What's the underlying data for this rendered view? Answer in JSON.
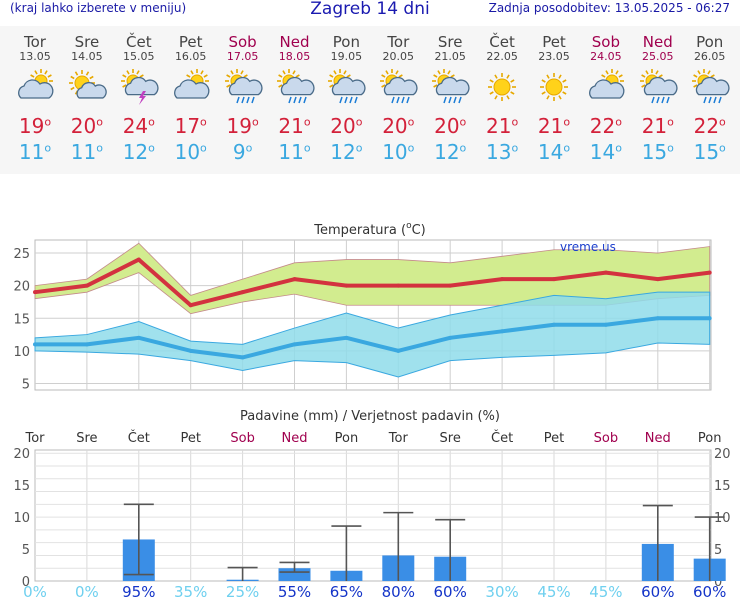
{
  "header": {
    "left_note": "(kraj lahko izberete v meniju)",
    "title": "Zagreb 14 dni",
    "updated": "Zadnja posodobitev: 13.05.2025 - 06:27"
  },
  "days": [
    {
      "name": "Tor",
      "date": "13.05",
      "weekend": false,
      "icon": "partly-cloudy-icon",
      "max": "19",
      "min": "11"
    },
    {
      "name": "Sre",
      "date": "14.05",
      "weekend": false,
      "icon": "sun-cloud-icon",
      "max": "20",
      "min": "11"
    },
    {
      "name": "Čet",
      "date": "15.05",
      "weekend": false,
      "icon": "thunderstorm-icon",
      "max": "24",
      "min": "12"
    },
    {
      "name": "Pet",
      "date": "16.05",
      "weekend": false,
      "icon": "partly-cloudy-icon",
      "max": "17",
      "min": "10"
    },
    {
      "name": "Sob",
      "date": "17.05",
      "weekend": true,
      "icon": "sun-rain-icon",
      "max": "19",
      "min": "9"
    },
    {
      "name": "Ned",
      "date": "18.05",
      "weekend": true,
      "icon": "sun-rain-icon",
      "max": "21",
      "min": "11"
    },
    {
      "name": "Pon",
      "date": "19.05",
      "weekend": false,
      "icon": "sun-rain-icon",
      "max": "20",
      "min": "12"
    },
    {
      "name": "Tor",
      "date": "20.05",
      "weekend": false,
      "icon": "sun-rain-icon",
      "max": "20",
      "min": "10"
    },
    {
      "name": "Sre",
      "date": "21.05",
      "weekend": false,
      "icon": "sun-rain-icon",
      "max": "20",
      "min": "12"
    },
    {
      "name": "Čet",
      "date": "22.05",
      "weekend": false,
      "icon": "sun-icon",
      "max": "21",
      "min": "13"
    },
    {
      "name": "Pet",
      "date": "23.05",
      "weekend": false,
      "icon": "sun-icon",
      "max": "21",
      "min": "14"
    },
    {
      "name": "Sob",
      "date": "24.05",
      "weekend": true,
      "icon": "partly-cloudy-icon",
      "max": "22",
      "min": "14"
    },
    {
      "name": "Ned",
      "date": "25.05",
      "weekend": true,
      "icon": "sun-rain-icon",
      "max": "21",
      "min": "15"
    },
    {
      "name": "Pon",
      "date": "26.05",
      "weekend": false,
      "icon": "sun-rain-icon",
      "max": "22",
      "min": "15"
    }
  ],
  "chart_data": [
    {
      "type": "line",
      "title": "Temperatura (°C)",
      "title_text": "Temperatura (",
      "title_unit": "C)",
      "watermark": "vreme.us",
      "ylim": [
        4,
        27
      ],
      "yticks": [
        5,
        10,
        15,
        20,
        25
      ],
      "grid": true,
      "categories": [
        "13.05",
        "14.05",
        "15.05",
        "16.05",
        "17.05",
        "18.05",
        "19.05",
        "20.05",
        "21.05",
        "22.05",
        "23.05",
        "24.05",
        "25.05",
        "26.05"
      ],
      "series": [
        {
          "name": "max",
          "color": "#d3323f",
          "values": [
            19,
            20,
            24,
            17,
            19,
            21,
            20,
            20,
            20,
            21,
            21,
            22,
            21,
            22
          ]
        },
        {
          "name": "min",
          "color": "#3aa8e0",
          "values": [
            11,
            11,
            12,
            10,
            9,
            11,
            12,
            10,
            12,
            13,
            14,
            14,
            15,
            15
          ]
        }
      ],
      "bands": [
        {
          "name": "max range",
          "color": "#d2ec8f",
          "low": [
            18,
            19,
            22,
            15.7,
            17.5,
            18.7,
            17,
            17,
            17,
            17,
            17,
            17,
            18,
            18.5
          ],
          "high": [
            20,
            21,
            26.5,
            18.5,
            21,
            23.5,
            24,
            24,
            23.5,
            24.5,
            25.5,
            25.5,
            25,
            26
          ]
        },
        {
          "name": "min range",
          "color": "#8fdcea",
          "low": [
            10,
            9.8,
            9.5,
            8.5,
            7,
            8.5,
            8.2,
            6,
            8.5,
            9,
            9.3,
            9.7,
            11.2,
            11
          ]
        },
        {
          "name": "min range high",
          "values": [
            12,
            12.5,
            14.5,
            11.5,
            11,
            13.5,
            15.8,
            13.5,
            15.5,
            17,
            18.5,
            18,
            19,
            19
          ]
        }
      ]
    },
    {
      "type": "bar",
      "title": "Padavine (mm) / Verjetnost padavin (%)",
      "ylim": [
        0,
        20.5
      ],
      "yticks": [
        0,
        5,
        10,
        15,
        20
      ],
      "grid": true,
      "categories": [
        "Tor",
        "Sre",
        "Čet",
        "Pet",
        "Sob",
        "Ned",
        "Pon",
        "Tor",
        "Sre",
        "Čet",
        "Pet",
        "Sob",
        "Ned",
        "Pon"
      ],
      "weekend": [
        false,
        false,
        false,
        false,
        true,
        true,
        false,
        false,
        false,
        false,
        false,
        true,
        true,
        false
      ],
      "bar_color": "#3a8ee6",
      "values": [
        0,
        0,
        6.5,
        0,
        0.2,
        2,
        1.6,
        4,
        3.8,
        0,
        0,
        0,
        5.8,
        3.5
      ],
      "error_low": [
        0,
        0,
        1,
        0,
        0,
        1.4,
        0,
        0,
        0,
        0,
        0,
        0,
        0,
        0
      ],
      "error_high": [
        0,
        0,
        12,
        0,
        2.1,
        2.9,
        8.6,
        10.7,
        9.6,
        0,
        0,
        0,
        11.8,
        10
      ],
      "probability": [
        "0%",
        "0%",
        "95%",
        "35%",
        "25%",
        "55%",
        "65%",
        "80%",
        "60%",
        "30%",
        "45%",
        "45%",
        "60%",
        "60%"
      ]
    }
  ]
}
